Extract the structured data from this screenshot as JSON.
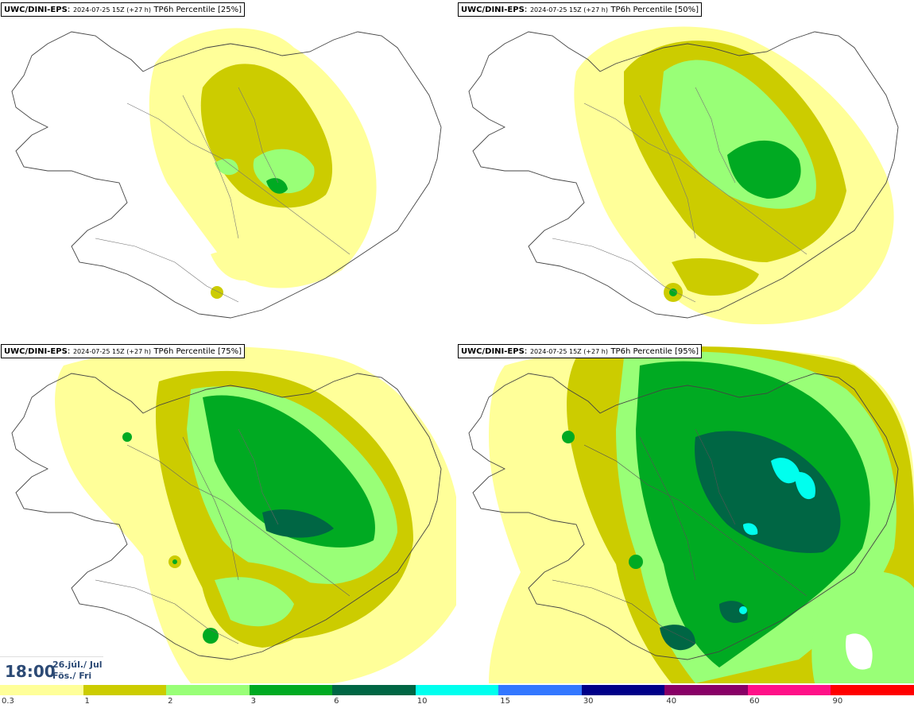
{
  "panels": [
    {
      "model": "UWC/DINI-EPS",
      "run": "2024-07-25 15Z (+27 h)",
      "field": "TP6h Percentile [25%]"
    },
    {
      "model": "UWC/DINI-EPS",
      "run": "2024-07-25 15Z (+27 h)",
      "field": "TP6h Percentile [50%]"
    },
    {
      "model": "UWC/DINI-EPS",
      "run": "2024-07-25 15Z (+27 h)",
      "field": "TP6h Percentile [75%]"
    },
    {
      "model": "UWC/DINI-EPS",
      "run": "2024-07-25 15Z (+27 h)",
      "field": "TP6h Percentile [95%]"
    }
  ],
  "valid_time": {
    "time": "18:00",
    "date_line1": "26.júl./ Jul",
    "date_line2": "Fös./ Fri"
  },
  "legend": {
    "ticks": [
      "0.3",
      "1",
      "2",
      "3",
      "6",
      "10",
      "15",
      "30",
      "40",
      "60",
      "90"
    ],
    "colors": [
      "#ffff99",
      "#cccc00",
      "#99ff77",
      "#00aa22",
      "#006644",
      "#00ffee",
      "#3377ff",
      "#000088",
      "#880066",
      "#ff1188",
      "#ff0000"
    ]
  },
  "colors": {
    "c03": "#ffff99",
    "c1": "#cccc00",
    "c2": "#99ff77",
    "c3": "#00aa22",
    "c6": "#006644",
    "c10": "#00ffee",
    "coast": "#444444"
  }
}
